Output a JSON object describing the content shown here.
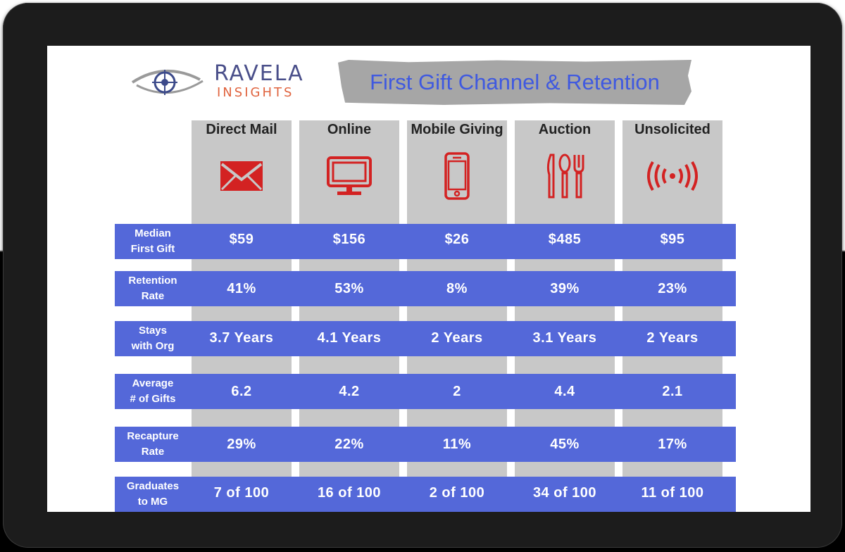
{
  "brand": {
    "line1": "RAVELA",
    "line2": "INSIGHTS"
  },
  "banner_title": "First Gift Channel & Retention",
  "colors": {
    "row_bg": "#5468d9",
    "column_bg": "#c8c8c8",
    "icon": "#d32222",
    "title": "#3f59e0"
  },
  "columns": [
    {
      "title": "Direct Mail",
      "icon": "envelope-icon"
    },
    {
      "title": "Online",
      "icon": "monitor-icon"
    },
    {
      "title": "Mobile Giving",
      "icon": "phone-icon"
    },
    {
      "title": "Auction",
      "icon": "cutlery-icon"
    },
    {
      "title": "Unsolicited",
      "icon": "broadcast-icon"
    }
  ],
  "rows": [
    {
      "label": "Median\nFirst Gift",
      "values": [
        "$59",
        "$156",
        "$26",
        "$485",
        "$95"
      ]
    },
    {
      "label": "Retention\nRate",
      "values": [
        "41%",
        "53%",
        "8%",
        "39%",
        "23%"
      ]
    },
    {
      "label": "Stays\nwith Org",
      "values": [
        "3.7 Years",
        "4.1 Years",
        "2 Years",
        "3.1 Years",
        "2 Years"
      ]
    },
    {
      "label": "Average\n# of Gifts",
      "values": [
        "6.2",
        "4.2",
        "2",
        "4.4",
        "2.1"
      ]
    },
    {
      "label": "Recapture\nRate",
      "values": [
        "29%",
        "22%",
        "11%",
        "45%",
        "17%"
      ]
    },
    {
      "label": "Graduates\nto MG",
      "values": [
        "7 of 100",
        "16 of 100",
        "2 of 100",
        "34 of 100",
        "11 of 100"
      ]
    }
  ]
}
